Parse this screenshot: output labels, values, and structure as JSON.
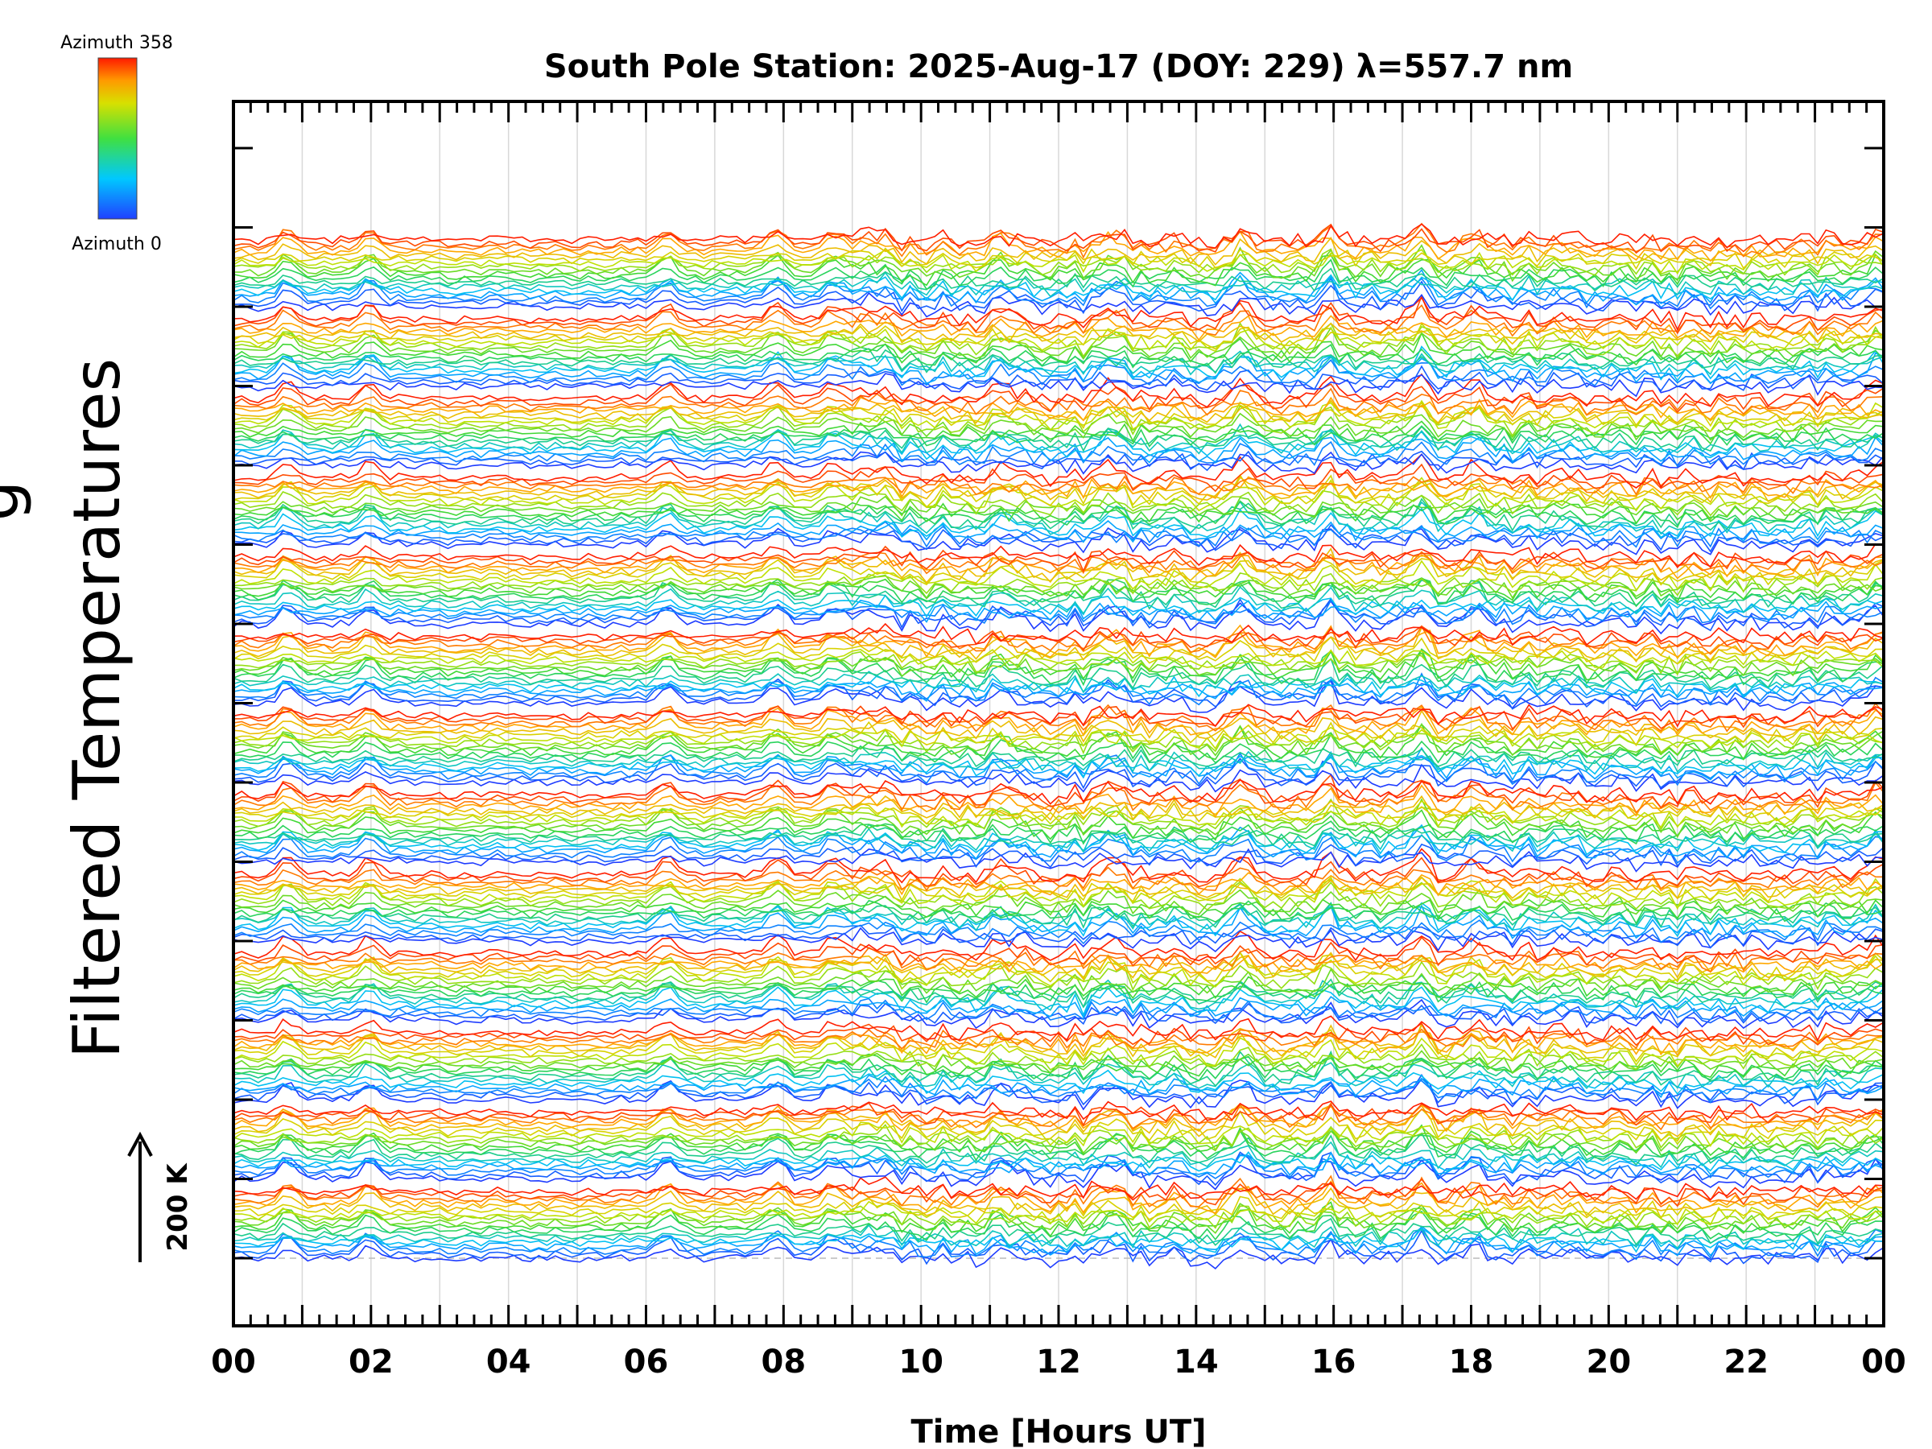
{
  "chart_data": {
    "type": "line",
    "title": "South Pole Station: 2025-Aug-17 (DOY: 229) λ=557.7 nm",
    "xlabel": "Time [Hours UT]",
    "ylabel": "Filtered Temperatures",
    "ylabel_prefix_fragment": "g",
    "xlim": [
      0,
      24
    ],
    "x_tick_labels": [
      "00",
      "02",
      "04",
      "06",
      "08",
      "10",
      "12",
      "14",
      "16",
      "18",
      "20",
      "22",
      "00"
    ],
    "colorbar": {
      "top_label": "Azimuth 358",
      "bottom_label": "Azimuth 0",
      "colormap": "rainbow",
      "min": 0,
      "max": 358
    },
    "scale_bar": {
      "label": "200 K",
      "value_kelvin": 200
    },
    "stack": {
      "groups": 13,
      "azimuths_per_group": 18,
      "description_units": "stacked traces offset per group"
    },
    "grid": true,
    "colors": {
      "low_azimuth": "#1e3cff",
      "high_azimuth": "#ff2a00"
    }
  }
}
